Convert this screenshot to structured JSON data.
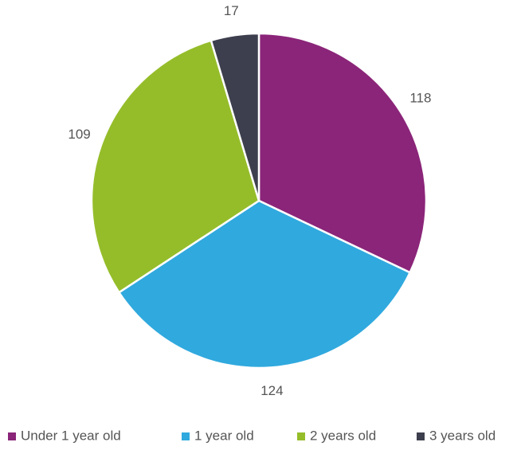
{
  "chart_data": {
    "type": "pie",
    "categories": [
      "Under 1 year old",
      "1 year old",
      "2 years old",
      "3 years old"
    ],
    "values": [
      118,
      124,
      109,
      17
    ],
    "colors": [
      "#8b2579",
      "#30a9de",
      "#95bd2a",
      "#3d3f4e"
    ],
    "legend": "bottom"
  }
}
